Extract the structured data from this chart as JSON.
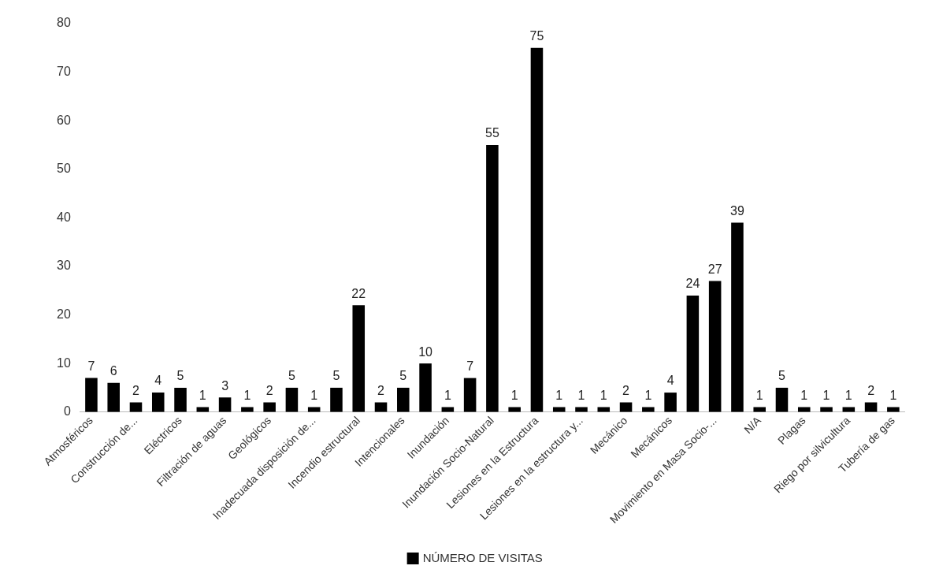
{
  "chart_data": {
    "type": "bar",
    "categories": [
      "Atmosféricos",
      null,
      "Construcción de...",
      null,
      "Eléctricos",
      null,
      "Filtración de aguas",
      null,
      "Geológicos",
      null,
      "Inadecuada disposición de...",
      null,
      "Incendio estructural",
      null,
      "Intencionales",
      null,
      "Inundación",
      null,
      "Inundación Socio-Natural",
      null,
      "Lesiones en la Estructura",
      null,
      "Lesiones en la estructura y...",
      null,
      "Mecánico",
      null,
      "Mecánicos",
      null,
      "Movimiento en Masa Socio-...",
      null,
      "N/A",
      null,
      "Plagas",
      null,
      "Riego por silvicultura",
      null,
      "Tubería de gas"
    ],
    "series": [
      {
        "name": "NÚMERO DE VISITAS",
        "color": "#000000",
        "values": [
          7,
          6,
          2,
          4,
          5,
          1,
          3,
          1,
          2,
          5,
          1,
          5,
          22,
          2,
          5,
          10,
          1,
          7,
          55,
          1,
          75,
          1,
          1,
          1,
          2,
          1,
          4,
          24,
          27,
          39,
          1,
          5,
          1,
          1,
          1,
          2,
          1
        ]
      }
    ],
    "ylim": [
      0,
      80
    ],
    "yticks": [
      0,
      10,
      20,
      30,
      40,
      50,
      60,
      70,
      80
    ],
    "grid": false,
    "legend": "bottom",
    "data_labels": true
  }
}
